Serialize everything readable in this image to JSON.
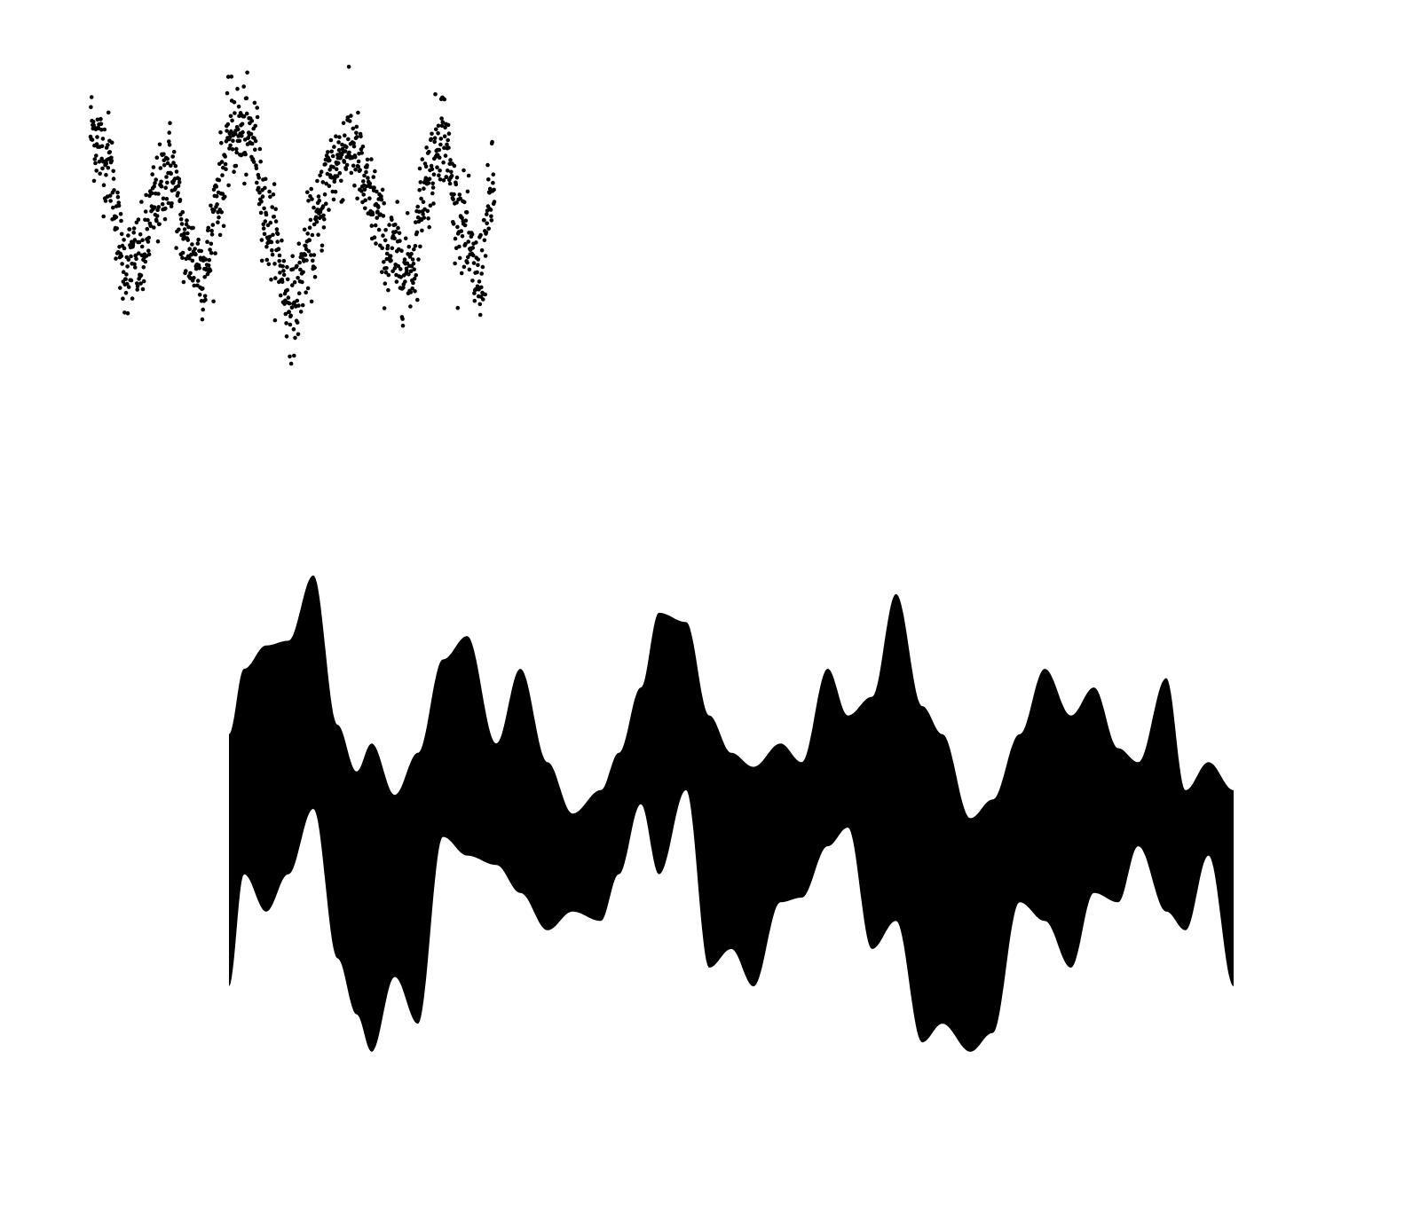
{
  "figure": {
    "background": "#ffffff"
  },
  "chart_data": [
    {
      "type": "scatter",
      "title": "",
      "xlabel": "",
      "ylabel": "",
      "axes_visible": false,
      "grid": false,
      "legend": "none",
      "marker_color": "#000000",
      "n_points": 1150,
      "xlim": [
        0,
        1
      ],
      "ylim": [
        -1.6,
        1.6
      ],
      "trend": {
        "x": [
          0.0,
          0.04,
          0.085,
          0.125,
          0.16,
          0.195,
          0.24,
          0.285,
          0.32,
          0.35,
          0.4,
          0.445,
          0.5,
          0.545,
          0.6,
          0.64,
          0.7,
          0.735,
          0.79,
          0.835,
          0.87,
          0.91,
          0.96,
          1.0
        ],
        "y": [
          0.9,
          0.6,
          -0.55,
          -0.5,
          0.1,
          0.5,
          -0.4,
          -0.6,
          0.3,
          0.9,
          0.8,
          -0.2,
          -1.0,
          -0.3,
          0.5,
          0.75,
          0.1,
          -0.4,
          -0.6,
          0.4,
          0.9,
          0.0,
          -0.7,
          0.3
        ]
      },
      "noise_sd": 0.25
    },
    {
      "type": "area",
      "title": "",
      "xlabel": "",
      "ylabel": "",
      "axes_visible": false,
      "grid": false,
      "legend": "none",
      "fill_color": "#000000",
      "xlim": [
        0,
        1
      ],
      "ylim": [
        -3.3,
        3.3
      ],
      "series": [
        {
          "x": [
            0.0,
            0.015,
            0.037,
            0.059,
            0.084,
            0.108,
            0.127,
            0.142,
            0.165,
            0.188,
            0.213,
            0.237,
            0.266,
            0.29,
            0.317,
            0.342,
            0.37,
            0.388,
            0.41,
            0.428,
            0.455,
            0.478,
            0.5,
            0.522,
            0.549,
            0.57,
            0.596,
            0.616,
            0.64,
            0.664,
            0.69,
            0.71,
            0.738,
            0.76,
            0.787,
            0.812,
            0.838,
            0.861,
            0.885,
            0.905,
            0.933,
            0.952,
            0.975,
            1.0
          ],
          "y_upper": [
            0.9,
            1.6,
            1.85,
            1.9,
            2.6,
            1.0,
            0.5,
            0.8,
            0.25,
            0.7,
            1.7,
            1.95,
            0.8,
            1.6,
            0.6,
            0.05,
            0.3,
            0.7,
            1.4,
            2.2,
            2.1,
            1.1,
            0.7,
            0.55,
            0.8,
            0.6,
            1.6,
            1.1,
            1.3,
            2.4,
            1.2,
            0.9,
            0.0,
            0.2,
            0.9,
            1.6,
            1.1,
            1.4,
            0.75,
            0.6,
            1.5,
            0.3,
            0.6,
            0.3
          ],
          "y_lower": [
            -1.8,
            -0.6,
            -1.0,
            -0.6,
            0.1,
            -1.5,
            -2.1,
            -2.5,
            -1.7,
            -2.2,
            -0.2,
            -0.4,
            -0.5,
            -0.8,
            -1.2,
            -1.0,
            -1.1,
            -0.6,
            0.15,
            -0.6,
            0.3,
            -1.6,
            -1.4,
            -1.8,
            -0.9,
            -0.85,
            -0.3,
            -0.1,
            -1.4,
            -1.1,
            -2.4,
            -2.2,
            -2.5,
            -2.3,
            -0.9,
            -1.1,
            -1.6,
            -0.8,
            -0.9,
            -0.3,
            -1.0,
            -1.2,
            -0.4,
            -1.8
          ]
        }
      ]
    }
  ]
}
